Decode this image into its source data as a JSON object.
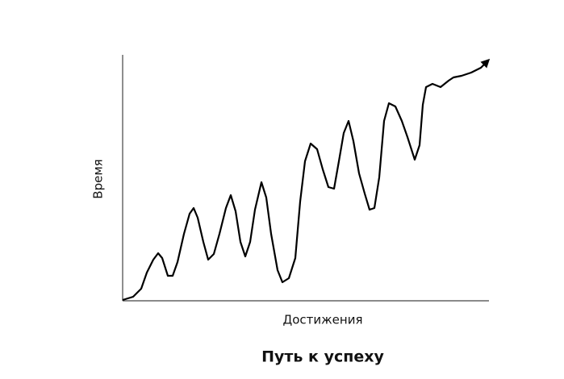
{
  "title": "Путь к успеху",
  "x_axis_label": "Достижения",
  "y_axis_label": "Время"
}
